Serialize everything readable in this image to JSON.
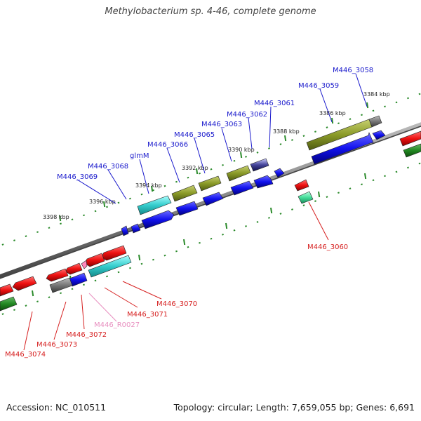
{
  "title": "Methylobacterium sp. 4-46, complete genome",
  "footer": {
    "accession": "Accession: NC_010511",
    "topology": "Topology: circular; Length: 7,659,055 bp; Genes: 6,691"
  },
  "ticks": {
    "t3384": "3384 kbp",
    "t3386": "3386 kbp",
    "t3388": "3388 kbp",
    "t3390": "3390 kbp",
    "t3392": "3392 kbp",
    "t3394": "3394 kbp",
    "t3396": "3396 kbp",
    "t3398": "3398 kbp"
  },
  "genes": {
    "g3058": "M446_3058",
    "g3059": "M446_3059",
    "g3060": "M446_3060",
    "g3061": "M446_3061",
    "g3062": "M446_3062",
    "g3063": "M446_3063",
    "g3065": "M446_3065",
    "g3066": "M446_3066",
    "glmM": "glmM",
    "g3068": "M446_3068",
    "g3069": "M446_3069",
    "g3070": "M446_3070",
    "g3071": "M446_3071",
    "r0027": "M446_R0027",
    "g3072": "M446_3072",
    "g3073": "M446_3073",
    "g3074": "M446_3074"
  },
  "colors": {
    "forward_label": "#1a1acc",
    "reverse_label": "#d62020",
    "rna_label": "#e890c0",
    "cds": "#1111ee",
    "cds_reverse": "#ee1111",
    "olive": "#8a9a28",
    "cyan": "#33cccc",
    "green": "#228822",
    "gray": "#777777",
    "dots": "#2a8a2a"
  }
}
